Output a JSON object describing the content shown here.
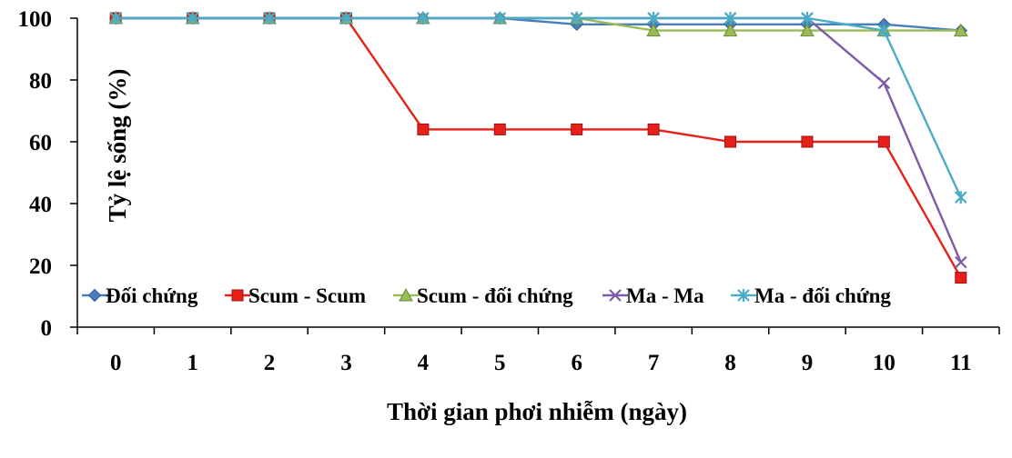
{
  "chart_data": {
    "type": "line",
    "title": "",
    "xlabel": "Thời gian phơi nhiễm (ngày)",
    "ylabel": "Tỷ lệ sống (%)",
    "ylim": [
      0,
      100
    ],
    "yticks": [
      0,
      20,
      40,
      60,
      80,
      100
    ],
    "x": [
      0,
      1,
      2,
      3,
      4,
      5,
      6,
      7,
      8,
      9,
      10,
      11
    ],
    "grid": false,
    "legend_position": "bottom-left",
    "series": [
      {
        "name": "Đối chứng",
        "marker": "diamond",
        "color": "#4a7ebb",
        "values": [
          100,
          100,
          100,
          100,
          100,
          100,
          98,
          98,
          98,
          98,
          98,
          96
        ]
      },
      {
        "name": "Scum - Scum",
        "marker": "square",
        "color": "#e8201a",
        "values": [
          100,
          100,
          100,
          100,
          64,
          64,
          64,
          64,
          60,
          60,
          60,
          16
        ]
      },
      {
        "name": "Scum - đối chứng",
        "marker": "triangle",
        "color": "#9bbb59",
        "values": [
          100,
          100,
          100,
          100,
          100,
          100,
          100,
          96,
          96,
          96,
          96,
          96
        ]
      },
      {
        "name": "Ma - Ma",
        "marker": "x",
        "color": "#7d5aa8",
        "values": [
          100,
          100,
          100,
          100,
          100,
          100,
          100,
          100,
          100,
          100,
          79,
          21
        ]
      },
      {
        "name": "Ma - đối chứng",
        "marker": "star",
        "color": "#4bacc6",
        "values": [
          100,
          100,
          100,
          100,
          100,
          100,
          100,
          100,
          100,
          100,
          96,
          42
        ]
      }
    ]
  }
}
